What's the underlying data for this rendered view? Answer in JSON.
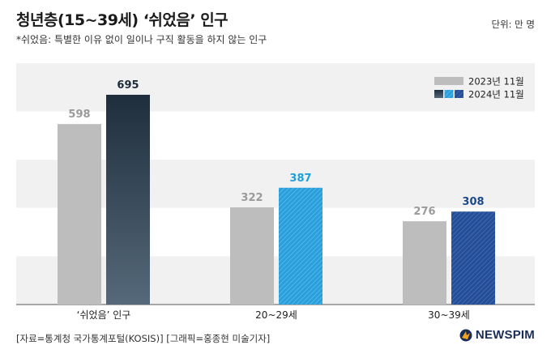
{
  "title": "청년층(15~39세) ‘쉬었음’ 인구",
  "unit": "단위: 만 명",
  "subtitle": "*쉬었음: 특별한 이유 없이 일이나 구직 활동을 하지 않는 인구",
  "source": "[자료=통계청 국가통계포털(KOSIS)] [그래픽=홍종현 미술기자]",
  "logo": "NEWSPIM",
  "chart_data": {
    "type": "bar",
    "categories": [
      "‘쉬었음’ 인구",
      "20~29세",
      "30~39세"
    ],
    "series": [
      {
        "name": "2023년 11월",
        "values": [
          598,
          322,
          276
        ]
      },
      {
        "name": "2024년 11월",
        "values": [
          695,
          387,
          308
        ]
      }
    ],
    "legend_position": "top-right",
    "label_colors": {
      "2023": "#9a9a9a",
      "2024": [
        "#1d2b3a",
        "#1e9fd9",
        "#1d4a8c"
      ]
    },
    "colors": {
      "2023": "#bdbdbd",
      "2024": [
        "#2a3e50",
        "#2a9fdc",
        "#244f98"
      ]
    }
  }
}
